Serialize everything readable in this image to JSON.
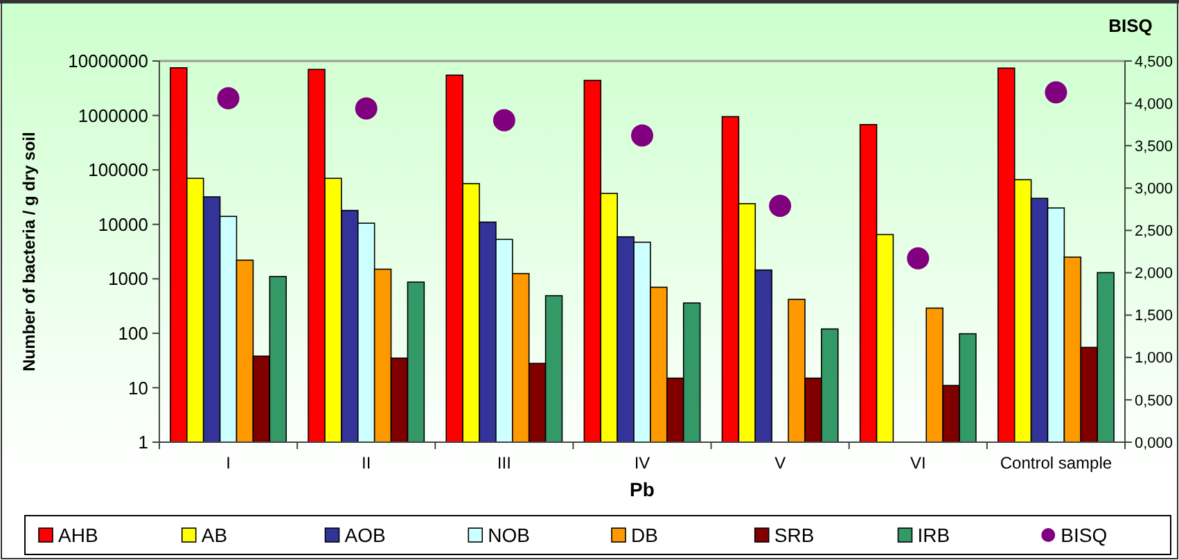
{
  "chart_data": {
    "type": "bar",
    "xlabel": "Pb",
    "ylabel": "Number of bacteria / g dry soil",
    "y2label": "BISQ",
    "categories": [
      "I",
      "II",
      "III",
      "IV",
      "V",
      "VI",
      "Control sample"
    ],
    "log": true,
    "ylim": [
      1,
      10000000
    ],
    "yticks": [
      1,
      10,
      100,
      1000,
      10000,
      100000,
      1000000,
      10000000
    ],
    "y2lim": [
      0,
      4.5
    ],
    "y2ticks": [
      {
        "value": 0,
        "label": "0,000"
      },
      {
        "value": 0.5,
        "label": "0,500"
      },
      {
        "value": 1,
        "label": "1,000"
      },
      {
        "value": 1.5,
        "label": "1,500"
      },
      {
        "value": 2,
        "label": "2,000"
      },
      {
        "value": 2.5,
        "label": "2,500"
      },
      {
        "value": 3,
        "label": "3,000"
      },
      {
        "value": 3.5,
        "label": "3,500"
      },
      {
        "value": 4,
        "label": "4,000"
      },
      {
        "value": 4.5,
        "label": "4,500"
      }
    ],
    "grid": false,
    "legend": "bottom",
    "series": [
      {
        "name": "AHB",
        "color": "#ff0000",
        "values": [
          7500000,
          7000000,
          5500000,
          4400000,
          950000,
          680000,
          7400000
        ]
      },
      {
        "name": "AB",
        "color": "#ffff00",
        "values": [
          70000,
          70000,
          56000,
          37000,
          24000,
          6500,
          66000
        ]
      },
      {
        "name": "AOB",
        "color": "#333399",
        "values": [
          32000,
          18000,
          11000,
          5900,
          1450,
          null,
          30000
        ]
      },
      {
        "name": "NOB",
        "color": "#ccffff",
        "values": [
          14000,
          10500,
          5300,
          4700,
          null,
          null,
          20000
        ]
      },
      {
        "name": "DB",
        "color": "#ff9900",
        "values": [
          2200,
          1500,
          1250,
          700,
          420,
          290,
          2500
        ]
      },
      {
        "name": "SRB",
        "color": "#800000",
        "values": [
          38,
          35,
          28,
          15,
          15,
          11,
          55
        ]
      },
      {
        "name": "IRB",
        "color": "#339966",
        "values": [
          1100,
          870,
          490,
          360,
          120,
          98,
          1300
        ]
      },
      {
        "name": "BISQ",
        "type": "scatter",
        "axis": "y2",
        "marker": "circle",
        "color": "#800080",
        "values": [
          4.06,
          3.94,
          3.8,
          3.62,
          2.79,
          2.17,
          4.13
        ]
      }
    ]
  }
}
